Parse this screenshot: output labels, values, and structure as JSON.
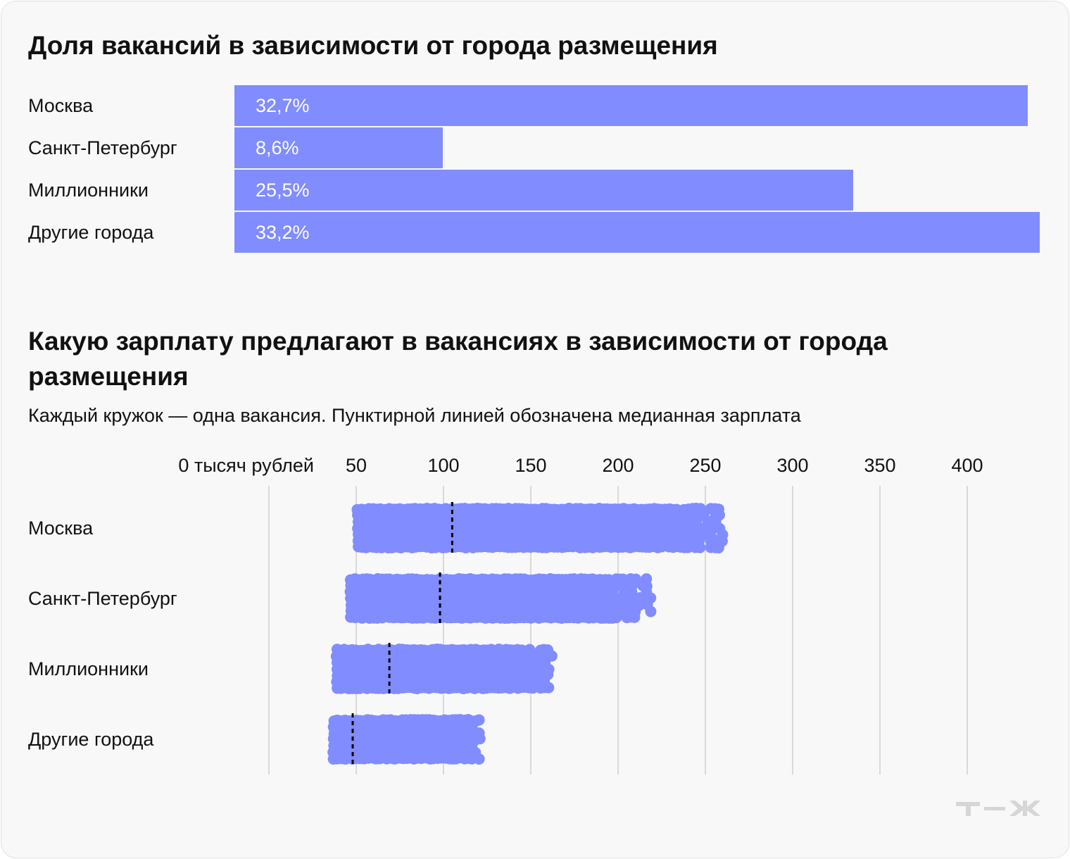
{
  "chart_data": [
    {
      "type": "bar",
      "orientation": "horizontal",
      "title": "Доля вакансий в зависимости от города размещения",
      "categories": [
        "Москва",
        "Санкт-Петербург",
        "Миллионники",
        "Другие города"
      ],
      "values": [
        32.7,
        8.6,
        25.5,
        33.2
      ],
      "data_labels": [
        "32,7%",
        "8,6%",
        "25,5%",
        "33,2%"
      ],
      "color": "#818cff"
    },
    {
      "type": "scatter",
      "subtype": "beeswarm",
      "title": "Какую зарплату предлагают в вакансиях в зависимости от города размещения",
      "subtitle": "Каждый кружок — одна вакансия. Пунктирной линией обозначена медианная зарплата",
      "x_tick_labels": [
        "0 тысяч рублей",
        "50",
        "100",
        "150",
        "200",
        "250",
        "300",
        "350",
        "400"
      ],
      "x_ticks": [
        0,
        50,
        100,
        150,
        200,
        250,
        300,
        350,
        400
      ],
      "xlim": [
        0,
        440
      ],
      "grid": true,
      "color": "#818cff",
      "series": [
        {
          "name": "Москва",
          "min": 51,
          "max": 262,
          "median": 105
        },
        {
          "name": "Санкт-Петербург",
          "min": 47,
          "max": 220,
          "median": 98
        },
        {
          "name": "Миллионники",
          "min": 39,
          "max": 163,
          "median": 69
        },
        {
          "name": "Другие города",
          "min": 37,
          "max": 122,
          "median": 48
        }
      ]
    }
  ],
  "logo": "т—ж"
}
